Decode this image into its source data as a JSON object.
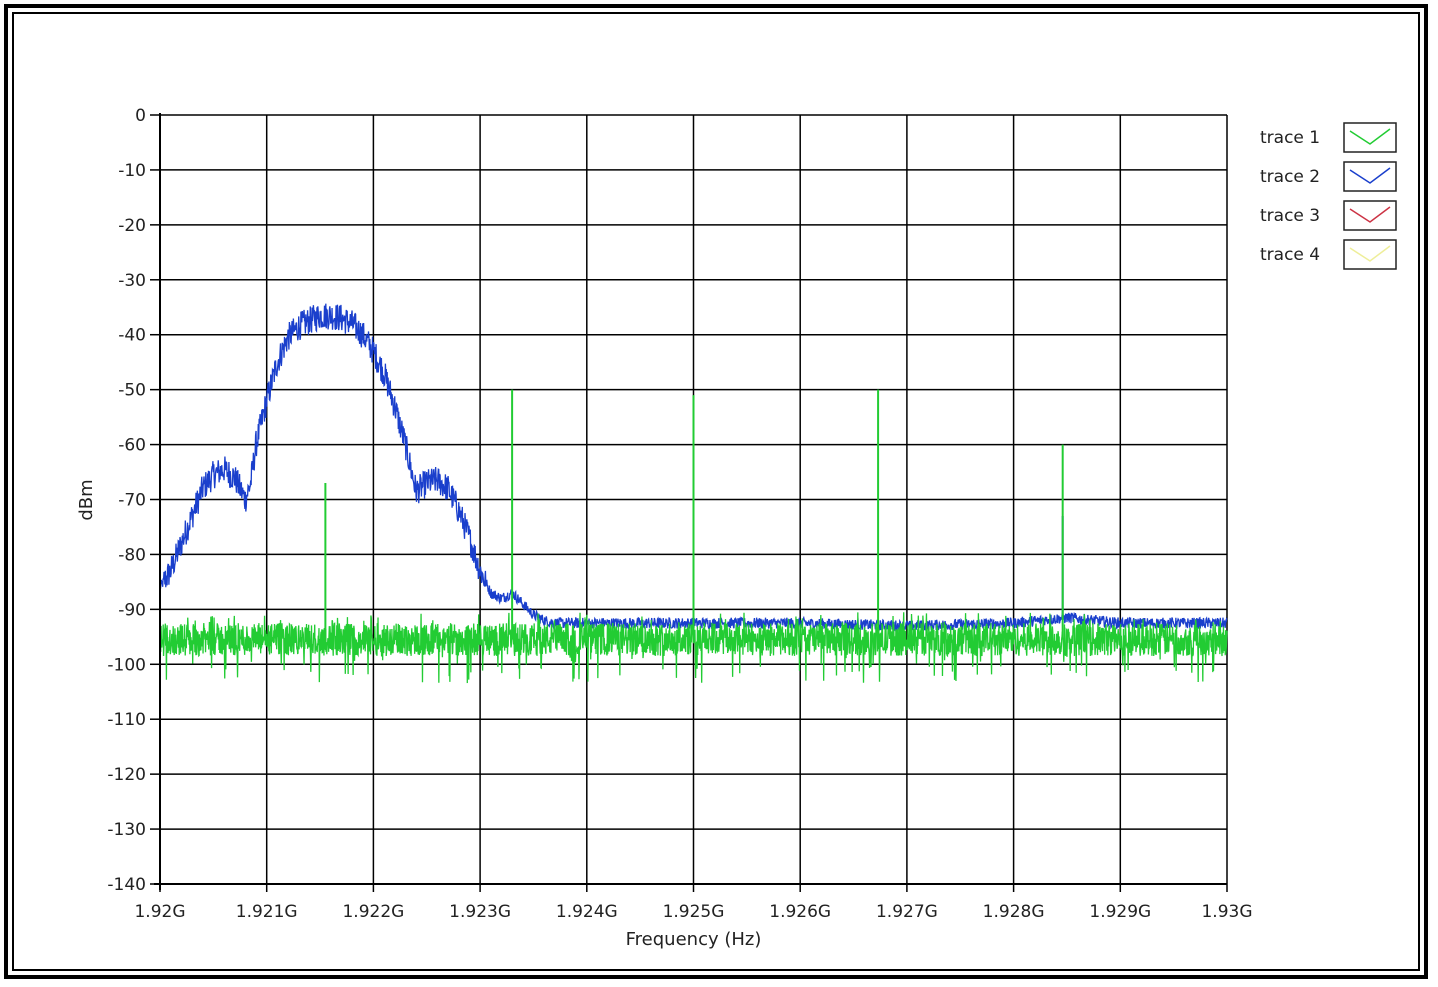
{
  "chart_data": {
    "type": "line",
    "title": "",
    "xlabel": "Frequency (Hz)",
    "ylabel": "dBm",
    "xlim": [
      1.92,
      1.93
    ],
    "ylim": [
      -140,
      0
    ],
    "x_ticks": [
      "1.92G",
      "1.921G",
      "1.922G",
      "1.923G",
      "1.924G",
      "1.925G",
      "1.926G",
      "1.927G",
      "1.928G",
      "1.929G",
      "1.93G"
    ],
    "y_ticks": [
      0,
      -10,
      -20,
      -30,
      -40,
      -50,
      -60,
      -70,
      -80,
      -90,
      -100,
      -110,
      -120,
      -130,
      -140
    ],
    "grid": true,
    "legend_position": "right",
    "series": [
      {
        "name": "trace 1",
        "color": "#22cc33",
        "noise_floor_dbm": -95.5,
        "spurs": [
          {
            "freq_ghz": 1.92155,
            "dbm": -67
          },
          {
            "freq_ghz": 1.9233,
            "dbm": -50
          },
          {
            "freq_ghz": 1.925,
            "dbm": -51
          },
          {
            "freq_ghz": 1.92673,
            "dbm": -50
          },
          {
            "freq_ghz": 1.92846,
            "dbm": -60
          }
        ]
      },
      {
        "name": "trace 2",
        "color": "#1a3fcc",
        "points": [
          [
            1.92,
            -86
          ],
          [
            1.9201,
            -83
          ],
          [
            1.9202,
            -78
          ],
          [
            1.9203,
            -73
          ],
          [
            1.9204,
            -68
          ],
          [
            1.9205,
            -65.5
          ],
          [
            1.9206,
            -64.5
          ],
          [
            1.9207,
            -66
          ],
          [
            1.9208,
            -70
          ],
          [
            1.92085,
            -67
          ],
          [
            1.9209,
            -60
          ],
          [
            1.921,
            -52
          ],
          [
            1.9211,
            -45
          ],
          [
            1.9212,
            -40.5
          ],
          [
            1.9213,
            -38.5
          ],
          [
            1.9214,
            -37.5
          ],
          [
            1.9215,
            -36.5
          ],
          [
            1.9216,
            -36.5
          ],
          [
            1.9217,
            -37
          ],
          [
            1.9218,
            -38
          ],
          [
            1.9219,
            -40
          ],
          [
            1.922,
            -43
          ],
          [
            1.9221,
            -47
          ],
          [
            1.9222,
            -53
          ],
          [
            1.9223,
            -60
          ],
          [
            1.9224,
            -68.5
          ],
          [
            1.9225,
            -67
          ],
          [
            1.9226,
            -66.5
          ],
          [
            1.9227,
            -68
          ],
          [
            1.9228,
            -72
          ],
          [
            1.9229,
            -77
          ],
          [
            1.923,
            -83
          ],
          [
            1.9231,
            -87
          ],
          [
            1.9232,
            -88
          ],
          [
            1.9233,
            -87
          ],
          [
            1.9234,
            -89
          ],
          [
            1.9235,
            -91
          ],
          [
            1.9236,
            -92
          ],
          [
            1.9237,
            -92.5
          ],
          [
            1.924,
            -92.5
          ],
          [
            1.926,
            -92.5
          ],
          [
            1.927,
            -93
          ],
          [
            1.928,
            -92.5
          ],
          [
            1.9285,
            -91.5
          ],
          [
            1.929,
            -92.5
          ],
          [
            1.93,
            -92.5
          ]
        ],
        "spurs": [
          {
            "freq_ghz": 1.92846,
            "dbm": -73
          }
        ]
      },
      {
        "name": "trace 3",
        "color": "#cc3344"
      },
      {
        "name": "trace 4",
        "color": "#eeee99"
      }
    ]
  }
}
